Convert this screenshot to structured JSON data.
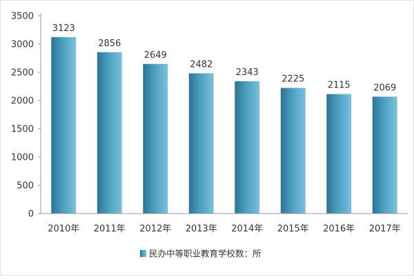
{
  "chart_data": {
    "type": "bar",
    "categories": [
      "2010年",
      "2011年",
      "2012年",
      "2013年",
      "2014年",
      "2015年",
      "2016年",
      "2017年"
    ],
    "values": [
      3123,
      2856,
      2649,
      2482,
      2343,
      2225,
      2115,
      2069
    ],
    "data_labels": [
      "3123",
      "2856",
      "2649",
      "2482",
      "2343",
      "2225",
      "2115",
      "2069"
    ],
    "series": [
      {
        "name": "民办中等职业教育学校数：所",
        "values": [
          3123,
          2856,
          2649,
          2482,
          2343,
          2225,
          2115,
          2069
        ]
      }
    ],
    "yticks": [
      "0",
      "500",
      "1000",
      "1500",
      "2000",
      "2500",
      "3000",
      "3500"
    ],
    "ylim": [
      0,
      3500
    ],
    "grid": false,
    "legend_position": "bottom",
    "colors": {
      "bar": "#4a9fc1",
      "bar_dark": "#2d7391",
      "bar_light": "#7cc0db",
      "axis": "#9a9a9a",
      "text": "#333333"
    }
  }
}
